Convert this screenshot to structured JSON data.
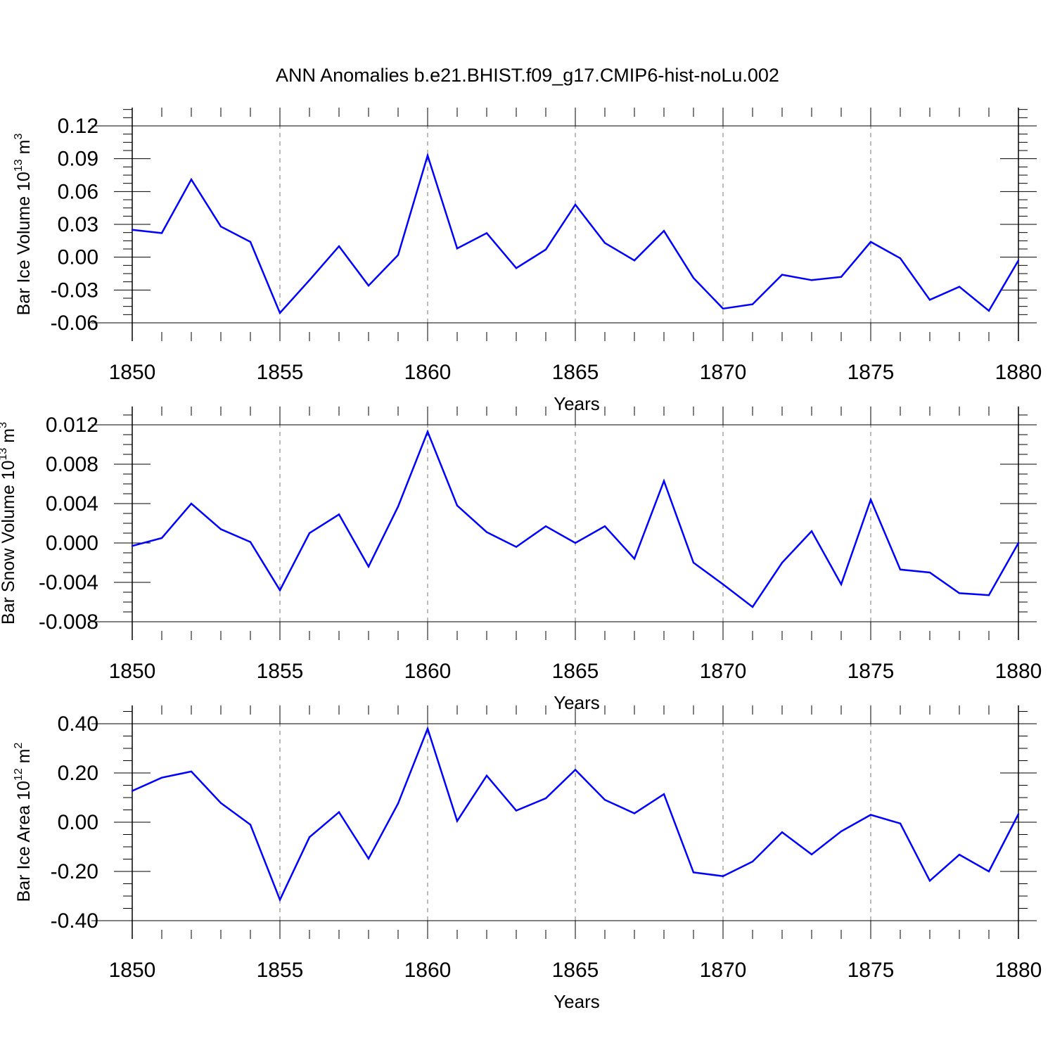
{
  "title": "ANN Anomalies b.e21.BHIST.f09_g17.CMIP6-hist-noLu.002",
  "line_color": "#0000ff",
  "chart_data": [
    {
      "type": "line",
      "title": "ANN Anomalies b.e21.BHIST.f09_g17.CMIP6-hist-noLu.002",
      "xlabel": "Years",
      "ylabel": {
        "prefix": "Bar Ice Volume 10",
        "exp": "13",
        "unit": " m",
        "unit_exp": "3"
      },
      "xlim": [
        1850,
        1880
      ],
      "ylim": [
        -0.06,
        0.12
      ],
      "x_ticks": [
        1850,
        1855,
        1860,
        1865,
        1870,
        1875,
        1880
      ],
      "x_tick_labels": [
        "1850",
        "1855",
        "1860",
        "1865",
        "1870",
        "1875",
        "1880"
      ],
      "y_ticks": [
        -0.06,
        -0.03,
        0.0,
        0.03,
        0.06,
        0.09,
        0.12
      ],
      "y_tick_labels": [
        "-0.06",
        "-0.03",
        "0.00",
        "0.03",
        "0.06",
        "0.09",
        "0.12"
      ],
      "grid": "vertical dashed at major x ticks",
      "x": [
        1850,
        1851,
        1852,
        1853,
        1854,
        1855,
        1856,
        1857,
        1858,
        1859,
        1860,
        1861,
        1862,
        1863,
        1864,
        1865,
        1866,
        1867,
        1868,
        1869,
        1870,
        1871,
        1872,
        1873,
        1874,
        1875,
        1876,
        1877,
        1878,
        1879,
        1880
      ],
      "y": [
        0.025,
        0.022,
        0.071,
        0.028,
        0.014,
        -0.051,
        -0.021,
        0.01,
        -0.026,
        0.002,
        0.093,
        0.008,
        0.022,
        -0.01,
        0.007,
        0.048,
        0.013,
        -0.003,
        0.024,
        -0.019,
        -0.047,
        -0.043,
        -0.016,
        -0.021,
        -0.018,
        0.014,
        -0.001,
        -0.039,
        -0.027,
        -0.049,
        -0.003
      ]
    },
    {
      "type": "line",
      "xlabel": "Years",
      "ylabel": {
        "prefix": "Bar Snow Volume 10",
        "exp": "13",
        "unit": " m",
        "unit_exp": "3"
      },
      "xlim": [
        1850,
        1880
      ],
      "ylim": [
        -0.009,
        0.0121
      ],
      "x_ticks": [
        1850,
        1855,
        1860,
        1865,
        1870,
        1875,
        1880
      ],
      "x_tick_labels": [
        "1850",
        "1855",
        "1860",
        "1865",
        "1870",
        "1875",
        "1880"
      ],
      "y_ticks": [
        -0.008,
        -0.004,
        0.0,
        0.004,
        0.008,
        0.012
      ],
      "y_tick_labels": [
        "-0.008",
        "-0.004",
        "0.000",
        "0.004",
        "0.008",
        "0.012"
      ],
      "grid": "vertical dashed at major x ticks",
      "x": [
        1850,
        1851,
        1852,
        1853,
        1854,
        1855,
        1856,
        1857,
        1858,
        1859,
        1860,
        1861,
        1862,
        1863,
        1864,
        1865,
        1866,
        1867,
        1868,
        1869,
        1870,
        1871,
        1872,
        1873,
        1874,
        1875,
        1876,
        1877,
        1878,
        1879,
        1880
      ],
      "y": [
        -0.0003,
        0.0005,
        0.004,
        0.0014,
        0.0001,
        -0.0048,
        0.001,
        0.0029,
        -0.0024,
        0.0037,
        0.0113,
        0.0038,
        0.0011,
        -0.0004,
        0.0017,
        0.0,
        0.0017,
        -0.0016,
        0.0063,
        -0.002,
        -0.0042,
        -0.0065,
        -0.002,
        0.0012,
        -0.0042,
        0.0044,
        -0.0027,
        -0.003,
        -0.0051,
        -0.0053,
        0.0
      ]
    },
    {
      "type": "line",
      "xlabel": "Years",
      "ylabel": {
        "prefix": "Bar Ice Area 10",
        "exp": "12",
        "unit": " m",
        "unit_exp": "2"
      },
      "xlim": [
        1850,
        1880
      ],
      "ylim": [
        -0.4,
        0.4
      ],
      "x_ticks": [
        1850,
        1855,
        1860,
        1865,
        1870,
        1875,
        1880
      ],
      "x_tick_labels": [
        "1850",
        "1855",
        "1860",
        "1865",
        "1870",
        "1875",
        "1880"
      ],
      "y_ticks": [
        -0.4,
        -0.2,
        0.0,
        0.2,
        0.4
      ],
      "y_tick_labels": [
        "-0.40",
        "-0.20",
        "0.00",
        "0.20",
        "0.40"
      ],
      "grid": "vertical dashed at major x ticks",
      "x": [
        1850,
        1851,
        1852,
        1853,
        1854,
        1855,
        1856,
        1857,
        1858,
        1859,
        1860,
        1861,
        1862,
        1863,
        1864,
        1865,
        1866,
        1867,
        1868,
        1869,
        1870,
        1871,
        1872,
        1873,
        1874,
        1875,
        1876,
        1877,
        1878,
        1879,
        1880
      ],
      "y": [
        0.127,
        0.181,
        0.206,
        0.078,
        -0.01,
        -0.315,
        -0.061,
        0.041,
        -0.148,
        0.076,
        0.38,
        0.005,
        0.189,
        0.047,
        0.097,
        0.213,
        0.091,
        0.036,
        0.114,
        -0.204,
        -0.219,
        -0.16,
        -0.041,
        -0.131,
        -0.037,
        0.03,
        -0.005,
        -0.238,
        -0.132,
        -0.2,
        0.033
      ]
    }
  ]
}
